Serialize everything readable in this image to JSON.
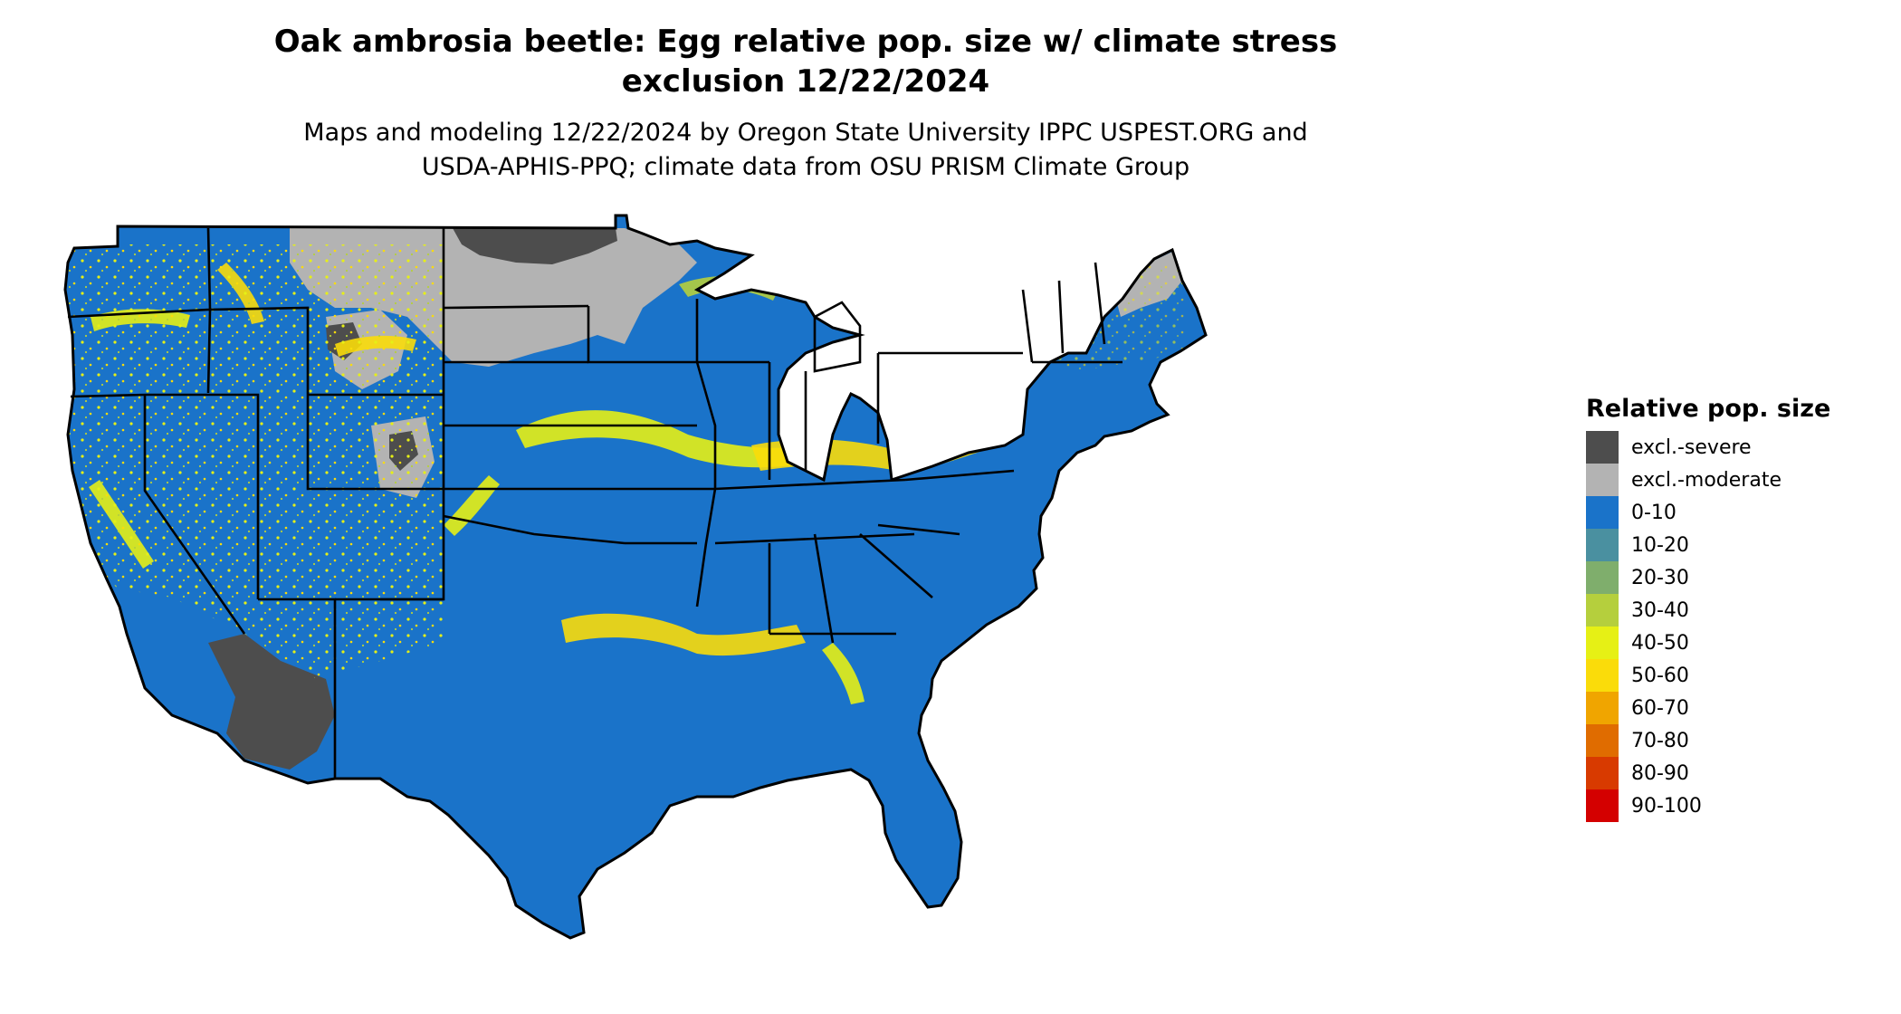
{
  "title": {
    "line1": "Oak ambrosia beetle: Egg relative pop. size w/ climate stress",
    "line2": "exclusion 12/22/2024"
  },
  "subtitle": {
    "line1": "Maps and modeling 12/22/2024 by Oregon State University IPPC USPEST.ORG and",
    "line2": "USDA-APHIS-PPQ; climate data from OSU PRISM Climate Group"
  },
  "map": {
    "region": "Contiguous United States",
    "base_color": "#1a73c9",
    "excl_moderate_color": "#b3b3b3",
    "excl_severe_color": "#4d4d4d",
    "band_colors": [
      "#4a90a0",
      "#7fae6c",
      "#b5cf3d",
      "#e6f015",
      "#fadc0a"
    ]
  },
  "legend": {
    "title": "Relative pop. size",
    "items": [
      {
        "label": "excl.-severe",
        "color": "#4d4d4d"
      },
      {
        "label": "excl.-moderate",
        "color": "#b3b3b3"
      },
      {
        "label": "0-10",
        "color": "#1a73c9"
      },
      {
        "label": "10-20",
        "color": "#4a90a0"
      },
      {
        "label": "20-30",
        "color": "#7fae6c"
      },
      {
        "label": "30-40",
        "color": "#b5cf3d"
      },
      {
        "label": "40-50",
        "color": "#e6f015"
      },
      {
        "label": "50-60",
        "color": "#fadc0a"
      },
      {
        "label": "60-70",
        "color": "#f0a500"
      },
      {
        "label": "70-80",
        "color": "#e06c00"
      },
      {
        "label": "80-90",
        "color": "#d83a00"
      },
      {
        "label": "90-100",
        "color": "#d40000"
      }
    ]
  }
}
